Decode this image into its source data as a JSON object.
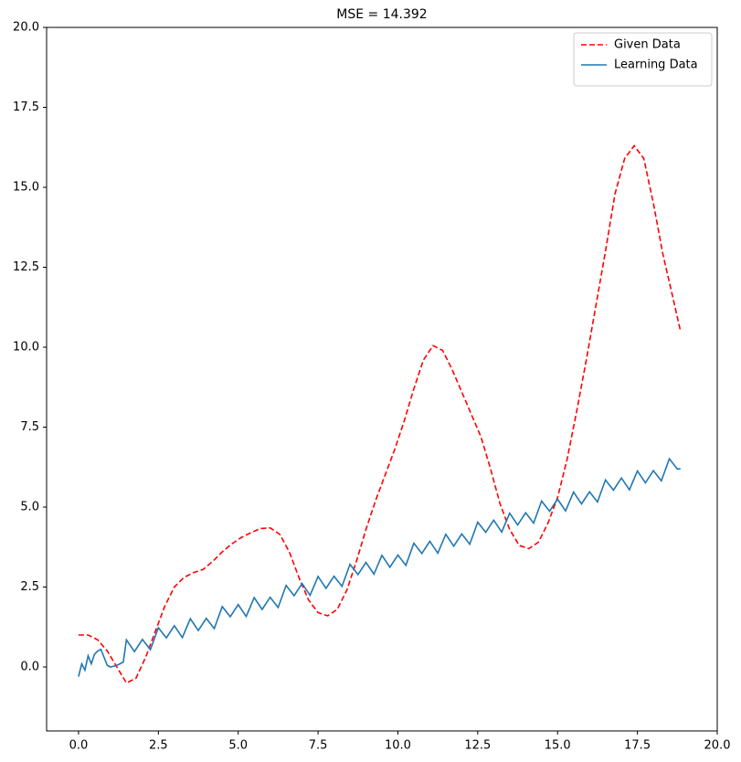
{
  "chart_data": {
    "type": "line",
    "title": "MSE = 14.392",
    "xlim": [
      -1,
      20
    ],
    "ylim": [
      -2,
      20
    ],
    "xticks": [
      {
        "value": 0,
        "label": "0.0"
      },
      {
        "value": 2.5,
        "label": "2.5"
      },
      {
        "value": 5,
        "label": "5.0"
      },
      {
        "value": 7.5,
        "label": "7.5"
      },
      {
        "value": 10,
        "label": "10.0"
      },
      {
        "value": 12.5,
        "label": "12.5"
      },
      {
        "value": 15,
        "label": "15.0"
      },
      {
        "value": 17.5,
        "label": "17.5"
      },
      {
        "value": 20,
        "label": "20.0"
      }
    ],
    "yticks": [
      {
        "value": 0,
        "label": "0.0"
      },
      {
        "value": 2.5,
        "label": "2.5"
      },
      {
        "value": 5,
        "label": "5.0"
      },
      {
        "value": 7.5,
        "label": "7.5"
      },
      {
        "value": 10,
        "label": "10.0"
      },
      {
        "value": 12.5,
        "label": "12.5"
      },
      {
        "value": 15,
        "label": "15.0"
      },
      {
        "value": 17.5,
        "label": "17.5"
      },
      {
        "value": 20,
        "label": "20.0"
      }
    ],
    "legend": "upper right",
    "series": [
      {
        "name": "Given Data",
        "color": "#ff0000",
        "dash": "dashed",
        "x": [
          0,
          0.3,
          0.6,
          0.9,
          1.2,
          1.5,
          1.8,
          2.1,
          2.4,
          2.7,
          3.0,
          3.3,
          3.6,
          3.9,
          4.2,
          4.5,
          4.8,
          5.1,
          5.4,
          5.7,
          6.0,
          6.3,
          6.6,
          6.9,
          7.2,
          7.5,
          7.8,
          8.1,
          8.4,
          8.7,
          9.0,
          9.3,
          9.6,
          9.9,
          10.2,
          10.5,
          10.8,
          11.1,
          11.4,
          11.7,
          12.0,
          12.3,
          12.6,
          12.9,
          13.2,
          13.5,
          13.8,
          14.1,
          14.4,
          14.7,
          15.0,
          15.3,
          15.6,
          15.9,
          16.2,
          16.5,
          16.8,
          17.1,
          17.4,
          17.7,
          18.0,
          18.3,
          18.6,
          18.85
        ],
        "values": [
          1.0,
          1.0,
          0.85,
          0.5,
          0.0,
          -0.5,
          -0.35,
          0.3,
          1.1,
          1.9,
          2.5,
          2.8,
          2.95,
          3.05,
          3.3,
          3.6,
          3.85,
          4.05,
          4.2,
          4.33,
          4.35,
          4.15,
          3.6,
          2.8,
          2.1,
          1.7,
          1.6,
          1.8,
          2.4,
          3.3,
          4.3,
          5.2,
          6.0,
          6.8,
          7.7,
          8.7,
          9.6,
          10.05,
          9.9,
          9.3,
          8.6,
          7.9,
          7.2,
          6.2,
          5.1,
          4.3,
          3.8,
          3.7,
          3.9,
          4.5,
          5.3,
          6.5,
          8.0,
          9.6,
          11.3,
          13.0,
          14.8,
          15.9,
          16.3,
          15.9,
          14.5,
          12.9,
          11.6,
          10.5
        ]
      },
      {
        "name": "Learning Data",
        "color": "#1f77b4",
        "dash": "solid",
        "x": [
          0,
          0.1,
          0.2,
          0.3,
          0.4,
          0.5,
          0.6,
          0.7,
          0.8,
          0.9,
          1.0,
          1.2,
          1.4,
          1.5,
          1.75,
          2.0,
          2.25,
          2.5,
          2.75,
          3.0,
          3.25,
          3.5,
          3.75,
          4.0,
          4.25,
          4.5,
          4.75,
          5.0,
          5.25,
          5.5,
          5.75,
          6.0,
          6.25,
          6.5,
          6.75,
          7.0,
          7.25,
          7.5,
          7.75,
          8.0,
          8.25,
          8.5,
          8.75,
          9.0,
          9.25,
          9.5,
          9.75,
          10.0,
          10.25,
          10.5,
          10.75,
          11.0,
          11.25,
          11.5,
          11.75,
          12.0,
          12.25,
          12.5,
          12.75,
          13.0,
          13.25,
          13.5,
          13.75,
          14.0,
          14.25,
          14.5,
          14.75,
          15.0,
          15.25,
          15.5,
          15.75,
          16.0,
          16.25,
          16.5,
          16.75,
          17.0,
          17.25,
          17.5,
          17.75,
          18.0,
          18.25,
          18.5,
          18.75,
          18.85
        ],
        "values": [
          -0.3,
          0.1,
          -0.1,
          0.35,
          0.1,
          0.4,
          0.5,
          0.55,
          0.3,
          0.05,
          0.0,
          0.05,
          0.15,
          0.85,
          0.48,
          0.86,
          0.54,
          1.23,
          0.91,
          1.29,
          0.92,
          1.51,
          1.14,
          1.52,
          1.2,
          1.89,
          1.57,
          1.95,
          1.58,
          2.17,
          1.8,
          2.18,
          1.86,
          2.55,
          2.23,
          2.61,
          2.24,
          2.83,
          2.46,
          2.84,
          2.52,
          3.21,
          2.89,
          3.27,
          2.9,
          3.49,
          3.12,
          3.5,
          3.18,
          3.87,
          3.55,
          3.93,
          3.56,
          4.15,
          3.78,
          4.16,
          3.84,
          4.53,
          4.21,
          4.59,
          4.22,
          4.81,
          4.44,
          4.82,
          4.5,
          5.19,
          4.87,
          5.25,
          4.88,
          5.47,
          5.1,
          5.48,
          5.16,
          5.85,
          5.53,
          5.91,
          5.54,
          6.13,
          5.76,
          6.14,
          5.82,
          6.51,
          6.19,
          6.2
        ]
      }
    ]
  }
}
